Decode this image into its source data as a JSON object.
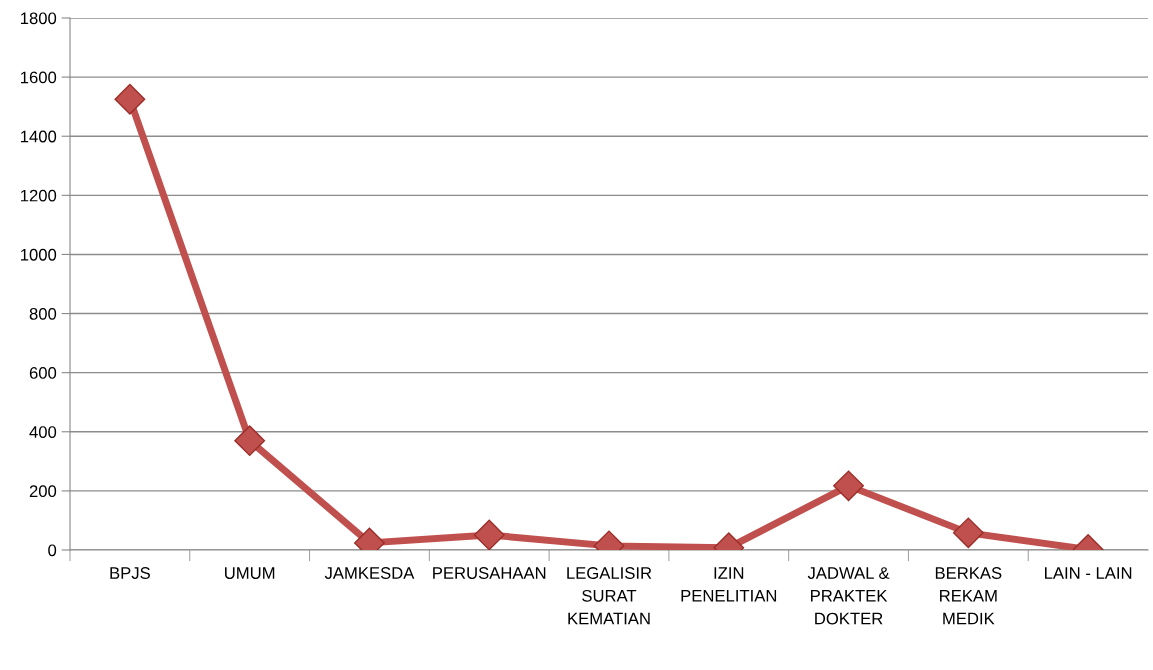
{
  "chart_data": {
    "type": "line",
    "categories": [
      "BPJS",
      "UMUM",
      "JAMKESDA",
      "PERUSAHAAN",
      "LEGALISIR\nSURAT\nKEMATIAN",
      "IZIN\nPENELITIAN",
      "JADWAL &\nPRAKTEK\nDOKTER",
      "BERKAS\nREKAM\nMEDIK",
      "LAIN - LAIN"
    ],
    "series": [
      {
        "color": "#c0504d",
        "values": [
          1525,
          370,
          24,
          51,
          14,
          8,
          217,
          58,
          2
        ]
      }
    ],
    "ylim": [
      0,
      1800
    ],
    "yticks": [
      0,
      200,
      400,
      600,
      800,
      1000,
      1200,
      1400,
      1600,
      1800
    ],
    "grid": "y",
    "marker": "diamond",
    "line_style": "solid",
    "legend": false
  }
}
